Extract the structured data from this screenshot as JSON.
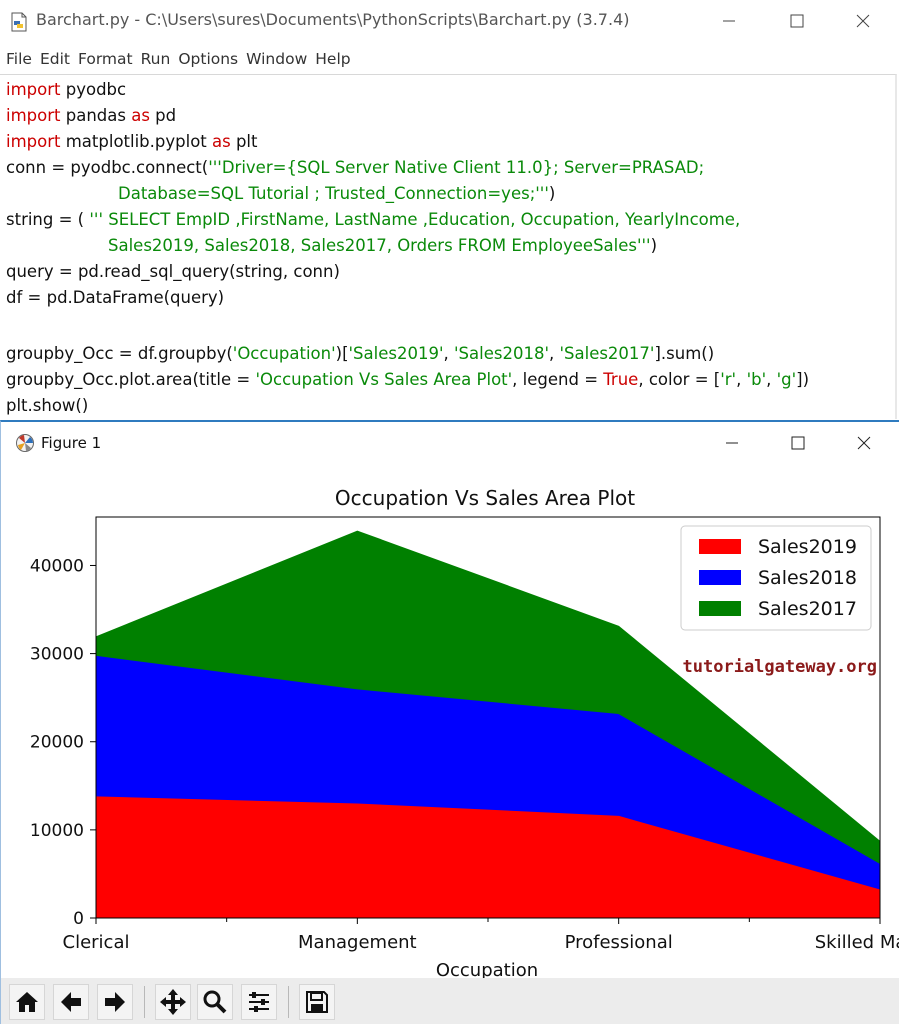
{
  "editor": {
    "title": "Barchart.py - C:\\Users\\sures\\Documents\\PythonScripts\\Barchart.py (3.7.4)",
    "menu": [
      "File",
      "Edit",
      "Format",
      "Run",
      "Options",
      "Window",
      "Help"
    ],
    "code": {
      "l1": {
        "kw": "import",
        "rest": " pyodbc"
      },
      "l2": {
        "kw": "import",
        "a": " pandas ",
        "kw2": "as",
        "b": " pd"
      },
      "l3": {
        "kw": "import",
        "a": " matplotlib.pyplot ",
        "kw2": "as",
        "b": " plt"
      },
      "l4": {
        "a": "conn = pyodbc.connect(",
        "s": "'''Driver={SQL Server Native Client 11.0}; Server=PRASAD;"
      },
      "l5": {
        "s": "Database=SQL Tutorial ; Trusted_Connection=yes;'''",
        "b": ")"
      },
      "l6": {
        "a": "string = ( ",
        "s": "''' SELECT EmpID ,FirstName, LastName ,Education, Occupation, YearlyIncome,"
      },
      "l7": {
        "s": "Sales2019, Sales2018, Sales2017, Orders FROM EmployeeSales'''",
        "b": ")"
      },
      "l8": {
        "a": "query = pd.read_sql_query(string, conn)"
      },
      "l9": {
        "a": "df = pd.DataFrame(query)"
      },
      "l10": {
        "a": "groupby_Occ = df.groupby(",
        "s1": "'Occupation'",
        "b": ")[",
        "s2": "'Sales2019'",
        "c": ", ",
        "s3": "'Sales2018'",
        "d": ", ",
        "s4": "'Sales2017'",
        "e": "].sum()"
      },
      "l11": {
        "a": "groupby_Occ.plot.area(title = ",
        "s1": "'Occupation Vs Sales Area Plot'",
        "b": ", legend = ",
        "kw": "True",
        "c": ", color = [",
        "s2": "'r'",
        "d": ", ",
        "s3": "'b'",
        "e": ", ",
        "s4": "'g'",
        "f": "])"
      },
      "l12": {
        "a": "plt.show()"
      }
    }
  },
  "figure": {
    "title": "Figure 1",
    "toolbar": [
      "home-icon",
      "back-arrow-icon",
      "forward-arrow-icon",
      "pan-icon",
      "zoom-icon",
      "configure-subplots-icon",
      "save-icon"
    ]
  },
  "chart_data": {
    "type": "area",
    "stacked": true,
    "title": "Occupation Vs Sales Area Plot",
    "xlabel": "Occupation",
    "ylabel": "",
    "categories": [
      "Clerical",
      "Management",
      "Professional",
      "Skilled Manual"
    ],
    "series": [
      {
        "name": "Sales2019",
        "color": "#ff0000",
        "values": [
          13850,
          13050,
          11650,
          3300
        ]
      },
      {
        "name": "Sales2018",
        "color": "#0000ff",
        "values": [
          15950,
          12950,
          11550,
          2900
        ]
      },
      {
        "name": "Sales2017",
        "color": "#008000",
        "values": [
          2100,
          17900,
          9900,
          2500
        ]
      }
    ],
    "ylim": [
      0,
      45500
    ],
    "yticks": [
      0,
      10000,
      20000,
      30000,
      40000
    ],
    "ytick_labels": [
      "0",
      "10000",
      "20000",
      "30000",
      "40000"
    ],
    "legend": "top-right",
    "watermark": "tutorialgateway.org",
    "watermark_color": "#8b1a1a",
    "grid": false
  }
}
